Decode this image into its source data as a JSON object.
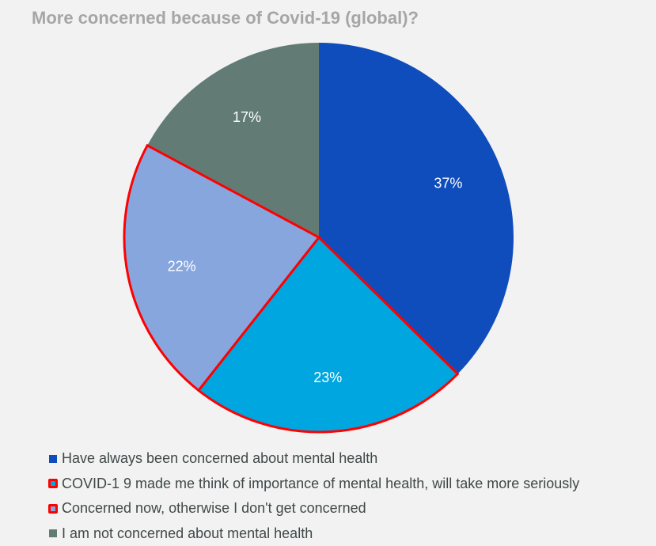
{
  "chart_data": {
    "type": "pie",
    "title": "More concerned because of Covid-19 (global)?",
    "categories": [
      "Have always been concerned about mental health",
      "COVID-1 9 made me think of importance of mental health, will take more seriously",
      "Concerned now, otherwise I don't get concerned",
      "I am not concerned about mental health"
    ],
    "values": [
      37,
      23,
      22,
      17
    ],
    "labels": [
      "37%",
      "23%",
      "22%",
      "17%"
    ],
    "colors": [
      "#0f4dbc",
      "#00a6e0",
      "#87a6de",
      "#627c75"
    ],
    "highlighted": [
      false,
      true,
      true,
      false
    ],
    "highlight_color": "#ff0000",
    "legend_position": "bottom-left"
  }
}
